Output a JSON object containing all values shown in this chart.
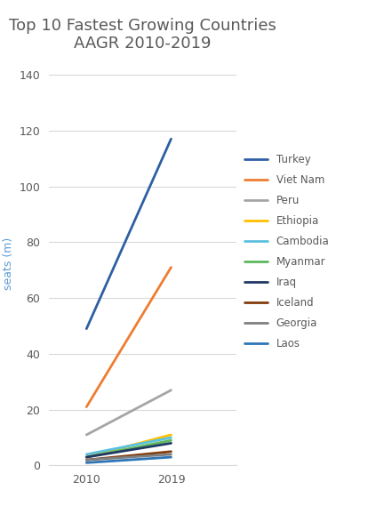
{
  "title": "Top 10 Fastest Growing Countries\nAAGR 2010-2019",
  "ylabel": "seats (m)",
  "years": [
    2010,
    2019
  ],
  "series": [
    {
      "label": "Turkey",
      "values": [
        49,
        117
      ],
      "color": "#2e5fa3",
      "linewidth": 2.0
    },
    {
      "label": "Viet Nam",
      "values": [
        21,
        71
      ],
      "color": "#ed7d31",
      "linewidth": 2.0
    },
    {
      "label": "Peru",
      "values": [
        11,
        27
      ],
      "color": "#a5a5a5",
      "linewidth": 2.0
    },
    {
      "label": "Ethiopia",
      "values": [
        3,
        11
      ],
      "color": "#ffc000",
      "linewidth": 2.0
    },
    {
      "label": "Cambodia",
      "values": [
        4,
        10
      ],
      "color": "#5bc0de",
      "linewidth": 2.0
    },
    {
      "label": "Myanmar",
      "values": [
        3,
        9
      ],
      "color": "#5cb85c",
      "linewidth": 2.0
    },
    {
      "label": "Iraq",
      "values": [
        3,
        8
      ],
      "color": "#1f3864",
      "linewidth": 2.0
    },
    {
      "label": "Iceland",
      "values": [
        2,
        5
      ],
      "color": "#843c0c",
      "linewidth": 2.0
    },
    {
      "label": "Georgia",
      "values": [
        2,
        4
      ],
      "color": "#7f7f7f",
      "linewidth": 2.0
    },
    {
      "label": "Laos",
      "values": [
        1,
        3
      ],
      "color": "#2e75b6",
      "linewidth": 2.0
    }
  ],
  "xlim": [
    2006,
    2026
  ],
  "ylim": [
    0,
    145
  ],
  "yticks": [
    0,
    20,
    40,
    60,
    80,
    100,
    120,
    140
  ],
  "title_fontsize": 13,
  "ylabel_fontsize": 9,
  "tick_fontsize": 9,
  "legend_fontsize": 8.5,
  "background_color": "#ffffff",
  "title_color": "#595959",
  "axis_color": "#595959",
  "ylabel_color": "#5b9bd5",
  "grid_color": "#d9d9d9",
  "spine_color": "#d9d9d9"
}
